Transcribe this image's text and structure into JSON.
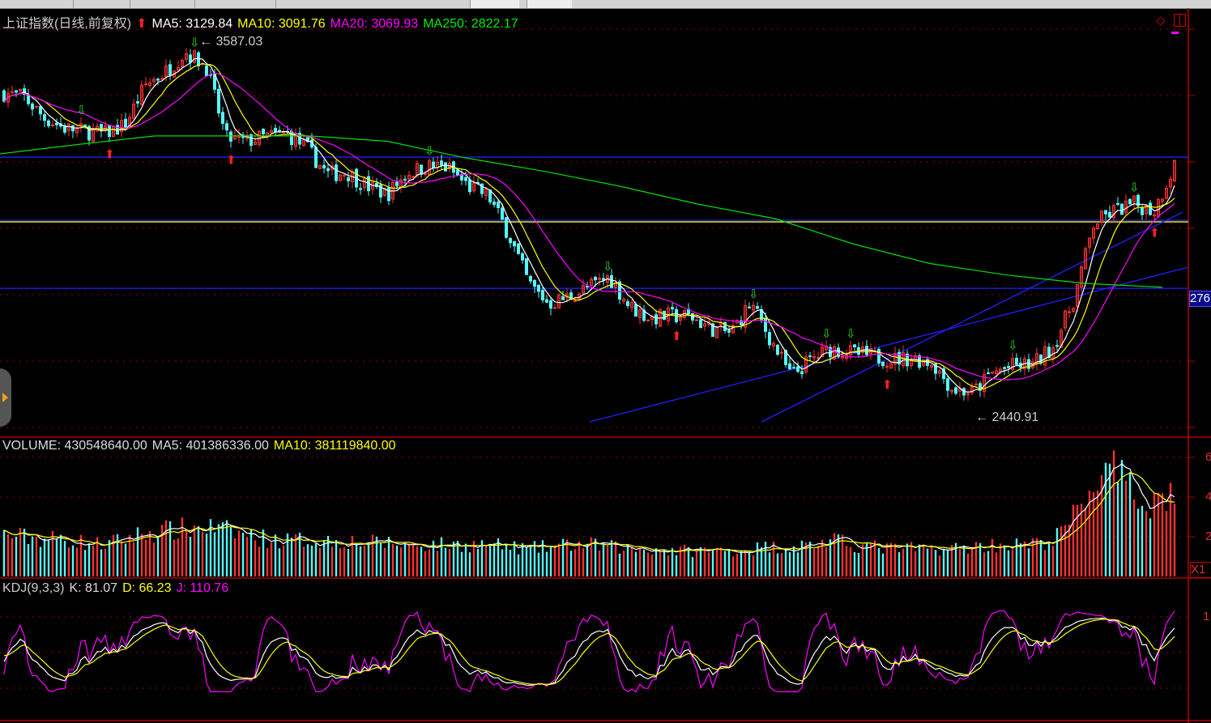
{
  "header": {
    "title": "上证指数(日线,前复权)",
    "ma5": "MA5: 3129.84",
    "ma10": "MA10: 3091.76",
    "ma20": "MA20: 3069.93",
    "ma250": "MA250: 2822.17"
  },
  "volume_header": {
    "volume": "VOLUME: 430548640.00",
    "ma5": "MA5: 401386336.00",
    "ma10": "MA10: 381119840.00"
  },
  "kdj_header": {
    "name": "KDJ(9,3,3)",
    "k": "K: 81.07",
    "d": "D: 66.23",
    "j": "J: 110.76"
  },
  "axis": {
    "price_label": "276",
    "volume_ticks": [
      "6",
      "4",
      "2"
    ],
    "volume_multiplier": "X1",
    "kdj_tick": "1"
  },
  "colors": {
    "up": "#ff3232",
    "down": "#54fcfc",
    "ma5": "#ffffff",
    "ma10": "#ffff00",
    "ma20": "#ff00ff",
    "ma250": "#00e000",
    "grid": "#b00000",
    "trendline": "#2020ff"
  },
  "chart_data": {
    "type": "candlestick",
    "price_range": [
      2370,
      3600
    ],
    "annotations": {
      "high": "3587.03",
      "low": "2440.91"
    },
    "close_anchors": [
      3416,
      3403,
      3340,
      3310,
      3300,
      3293,
      3320,
      3440,
      3480,
      3540,
      3500,
      3280,
      3269,
      3285,
      3293,
      3250,
      3171,
      3175,
      3134,
      3110,
      3175,
      3195,
      3190,
      3134,
      3105,
      2990,
      2840,
      2779,
      2800,
      2830,
      2860,
      2770,
      2735,
      2742,
      2740,
      2705,
      2690,
      2780,
      2669,
      2560,
      2610,
      2644,
      2630,
      2620,
      2610,
      2615,
      2600,
      2520,
      2510,
      2571,
      2590,
      2595,
      2650,
      2790,
      3020,
      3060,
      3080,
      3060,
      3200
    ],
    "ma250_anchors": [
      3232,
      3260,
      3286,
      3286,
      3286,
      3270,
      3220,
      3180,
      3134,
      3080,
      3036,
      2960,
      2900,
      2865,
      2840,
      2828
    ],
    "horizontal_lines": [
      3222,
      3031,
      2825
    ],
    "yellow_line": 3026,
    "volume_anchors": [
      2.1,
      2.0,
      1.9,
      1.9,
      1.7,
      1.6,
      1.9,
      2.2,
      2.3,
      2.4,
      2.5,
      2.3,
      2.1,
      1.9,
      1.8,
      1.85,
      1.8,
      1.8,
      1.7,
      1.7,
      1.6,
      1.6,
      1.6,
      1.6,
      1.6,
      1.5,
      1.4,
      1.5,
      1.6,
      1.6,
      1.5,
      1.4,
      1.4,
      1.3,
      1.3,
      1.3,
      1.3,
      1.4,
      1.5,
      1.5,
      1.6,
      1.8,
      1.6,
      1.5,
      1.4,
      1.4,
      1.4,
      1.4,
      1.5,
      1.6,
      1.6,
      1.6,
      1.8,
      3.0,
      4.8,
      5.2,
      4.0,
      3.8,
      4.3
    ],
    "volume_unit": 100000000,
    "kdj_params": [
      9,
      3,
      3
    ]
  }
}
